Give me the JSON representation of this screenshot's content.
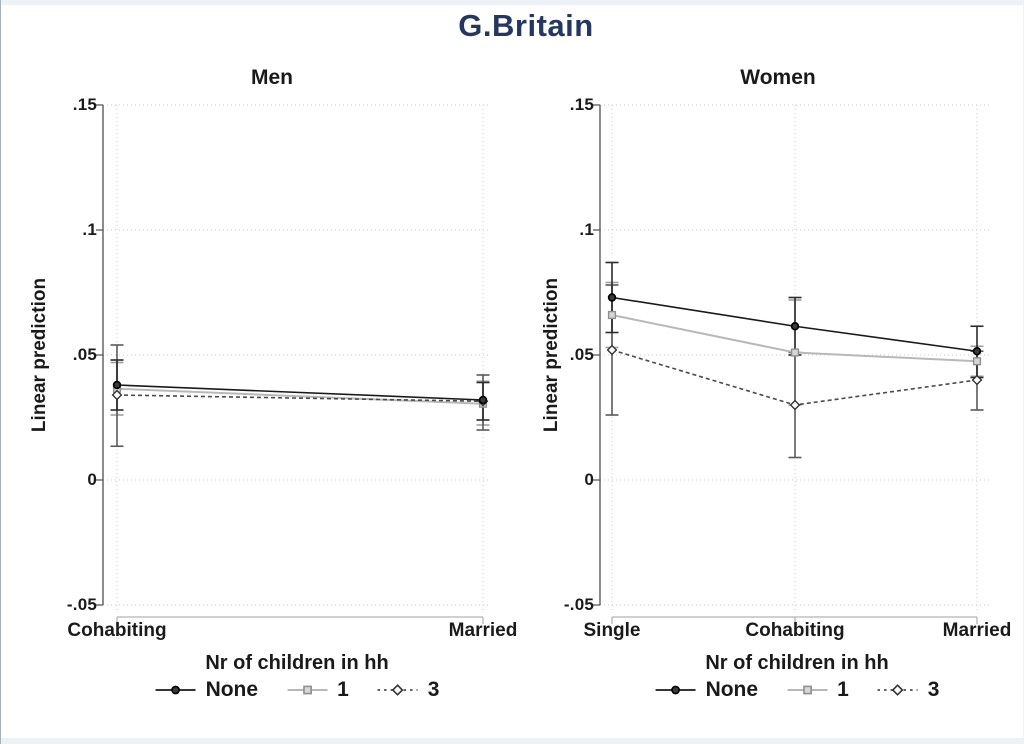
{
  "title": "G.Britain",
  "title_color": "#253761",
  "ylabel": "Linear prediction",
  "legend": {
    "title": "Nr of children in hh",
    "items": [
      {
        "label": "None",
        "marker": "circle",
        "line": "solid",
        "line_color": "#1a1a1a",
        "bar_color": "#2b2b2b",
        "marker_fill": "#3a3a3a",
        "marker_stroke": "#000000"
      },
      {
        "label": "1",
        "marker": "square",
        "line": "solid",
        "line_color": "#b8b8b8",
        "bar_color": "#a0a0a0",
        "marker_fill": "#d6d6d6",
        "marker_stroke": "#8f8f8f"
      },
      {
        "label": "3",
        "marker": "diamond",
        "line": "dashed",
        "line_color": "#4a4a4a",
        "bar_color": "#5a5a5a",
        "marker_fill": "#ffffff",
        "marker_stroke": "#333333"
      }
    ]
  },
  "chart_data": {
    "type": "line",
    "grid": true,
    "legend_position": "bottom",
    "ylim": [
      -0.05,
      0.15
    ],
    "yticks": {
      "values": [
        0.15,
        0.1,
        0.05,
        0,
        -0.05
      ],
      "labels": [
        ".15",
        ".1",
        ".05",
        "0",
        "-.05"
      ]
    },
    "panels": [
      {
        "title": "Men",
        "categories": [
          "Cohabiting",
          "Married"
        ],
        "series": [
          {
            "name": "None",
            "values": [
              0.038,
              0.032
            ],
            "ci_low": [
              0.028,
              0.024
            ],
            "ci_high": [
              0.048,
              0.039
            ]
          },
          {
            "name": "1",
            "values": [
              0.0365,
              0.0305
            ],
            "ci_low": [
              0.026,
              0.022
            ],
            "ci_high": [
              0.047,
              0.0395
            ]
          },
          {
            "name": "3",
            "values": [
              0.034,
              0.0315
            ],
            "ci_low": [
              0.0135,
              0.02
            ],
            "ci_high": [
              0.054,
              0.042
            ]
          }
        ]
      },
      {
        "title": "Women",
        "categories": [
          "Single",
          "Cohabiting",
          "Married"
        ],
        "series": [
          {
            "name": "None",
            "values": [
              0.073,
              0.0615,
              0.0515
            ],
            "ci_low": [
              0.059,
              0.05,
              0.041
            ],
            "ci_high": [
              0.087,
              0.073,
              0.0615
            ]
          },
          {
            "name": "1",
            "values": [
              0.066,
              0.051,
              0.0475
            ],
            "ci_low": [
              0.053,
              0.03,
              0.0415
            ],
            "ci_high": [
              0.079,
              0.072,
              0.0535
            ]
          },
          {
            "name": "3",
            "values": [
              0.052,
              0.03,
              0.04
            ],
            "ci_low": [
              0.026,
              0.009,
              0.028
            ],
            "ci_high": [
              0.078,
              0.051,
              0.0515
            ]
          }
        ]
      }
    ]
  }
}
